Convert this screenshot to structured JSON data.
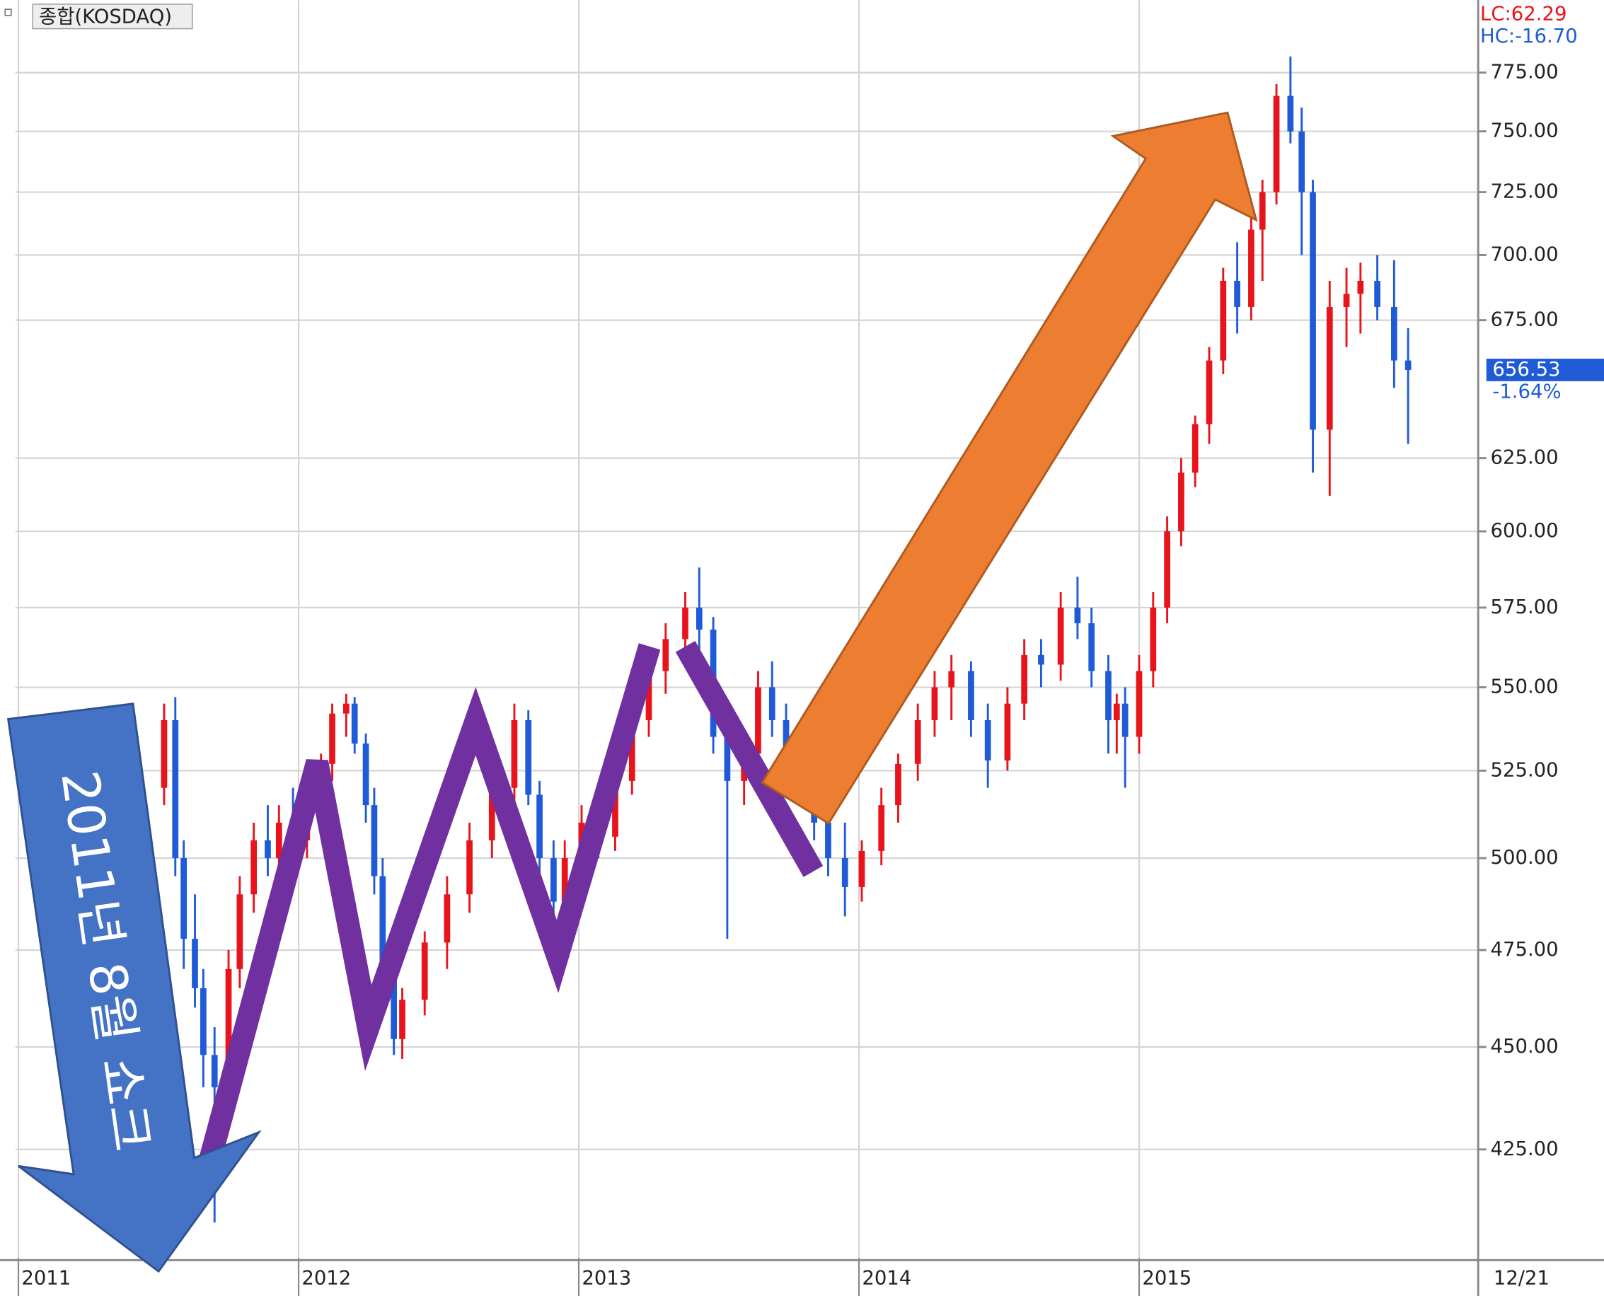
{
  "header": {
    "title": "종합(KOSDAQ)",
    "lc": "LC:62.29",
    "hc": "HC:-16.70"
  },
  "chart_data": {
    "type": "candlestick",
    "x": [
      2011.52,
      2011.56,
      2011.59,
      2011.63,
      2011.66,
      2011.7,
      2011.75,
      2011.79,
      2011.84,
      2011.89,
      2011.93,
      2011.98,
      2012.03,
      2012.08,
      2012.12,
      2012.17,
      2012.2,
      2012.24,
      2012.27,
      2012.3,
      2012.34,
      2012.37,
      2012.45,
      2012.53,
      2012.61,
      2012.69,
      2012.77,
      2012.82,
      2012.86,
      2012.91,
      2012.95,
      2013.01,
      2013.07,
      2013.13,
      2013.19,
      2013.25,
      2013.31,
      2013.38,
      2013.43,
      2013.48,
      2013.53,
      2013.59,
      2013.64,
      2013.69,
      2013.74,
      2013.79,
      2013.84,
      2013.89,
      2013.95,
      2014.01,
      2014.08,
      2014.14,
      2014.21,
      2014.27,
      2014.33,
      2014.4,
      2014.46,
      2014.53,
      2014.59,
      2014.65,
      2014.72,
      2014.78,
      2014.83,
      2014.89,
      2014.92,
      2014.95,
      2015.0,
      2015.05,
      2015.1,
      2015.15,
      2015.2,
      2015.25,
      2015.3,
      2015.35,
      2015.4,
      2015.44,
      2015.49,
      2015.54,
      2015.58,
      2015.62,
      2015.68,
      2015.74,
      2015.79,
      2015.85,
      2015.91,
      2015.96
    ],
    "open": [
      520,
      540,
      500,
      478,
      465,
      448,
      440,
      470,
      490,
      505,
      500,
      510,
      505,
      520,
      527,
      542,
      545,
      533,
      515,
      495,
      470,
      452,
      462,
      477,
      490,
      505,
      520,
      540,
      518,
      500,
      488,
      500,
      510,
      506,
      522,
      540,
      555,
      565,
      575,
      568,
      535,
      522,
      530,
      550,
      540,
      525,
      535,
      510,
      500,
      492,
      502,
      515,
      527,
      540,
      550,
      555,
      540,
      528,
      545,
      560,
      557,
      575,
      570,
      555,
      540,
      545,
      535,
      555,
      575,
      600,
      620,
      637,
      660,
      690,
      680,
      710,
      725,
      765,
      750,
      725,
      635,
      680,
      685,
      690,
      680,
      660
    ],
    "high": [
      545,
      547,
      505,
      490,
      470,
      455,
      475,
      495,
      510,
      515,
      515,
      520,
      525,
      530,
      545,
      548,
      547,
      536,
      520,
      500,
      475,
      465,
      480,
      495,
      510,
      525,
      545,
      543,
      522,
      505,
      505,
      515,
      520,
      525,
      545,
      560,
      570,
      580,
      588,
      572,
      540,
      535,
      555,
      558,
      545,
      538,
      538,
      515,
      510,
      505,
      520,
      530,
      545,
      555,
      560,
      558,
      545,
      550,
      565,
      565,
      580,
      585,
      575,
      560,
      548,
      550,
      560,
      580,
      605,
      625,
      640,
      665,
      695,
      705,
      715,
      730,
      770,
      782,
      760,
      730,
      690,
      695,
      697,
      700,
      698,
      672
    ],
    "low": [
      515,
      495,
      470,
      460,
      440,
      408,
      435,
      465,
      485,
      495,
      490,
      500,
      500,
      512,
      522,
      535,
      530,
      510,
      490,
      465,
      448,
      447,
      458,
      470,
      485,
      500,
      515,
      515,
      495,
      480,
      475,
      495,
      500,
      502,
      518,
      535,
      548,
      560,
      560,
      530,
      478,
      515,
      525,
      535,
      520,
      515,
      505,
      495,
      484,
      488,
      498,
      510,
      522,
      535,
      540,
      535,
      520,
      525,
      540,
      550,
      552,
      565,
      550,
      530,
      530,
      520,
      530,
      550,
      570,
      595,
      615,
      630,
      655,
      670,
      675,
      690,
      720,
      745,
      700,
      620,
      612,
      665,
      670,
      675,
      650,
      630
    ],
    "close": [
      540,
      500,
      478,
      465,
      448,
      440,
      470,
      490,
      505,
      500,
      510,
      505,
      520,
      527,
      542,
      545,
      533,
      515,
      495,
      470,
      452,
      462,
      477,
      490,
      505,
      520,
      540,
      518,
      500,
      488,
      500,
      510,
      506,
      522,
      540,
      555,
      565,
      575,
      568,
      535,
      522,
      530,
      550,
      540,
      525,
      535,
      510,
      500,
      492,
      502,
      515,
      527,
      540,
      550,
      555,
      540,
      528,
      545,
      560,
      557,
      575,
      570,
      555,
      540,
      545,
      535,
      555,
      575,
      600,
      620,
      637,
      660,
      690,
      680,
      710,
      725,
      765,
      750,
      725,
      635,
      680,
      685,
      690,
      680,
      660,
      656.53
    ],
    "up_color": "#e8141c",
    "down_color": "#1f5bd6",
    "xlim": [
      2011,
      2016.21
    ],
    "xticks": [
      2011,
      2012,
      2013,
      2014,
      2015
    ],
    "ylim": [
      400,
      807
    ],
    "log_y": true,
    "grid": true,
    "yticks": [
      {
        "value": 425,
        "label": "425.00"
      },
      {
        "value": 450,
        "label": "450.00"
      },
      {
        "value": 475,
        "label": "475.00"
      },
      {
        "value": 500,
        "label": "500.00"
      },
      {
        "value": 525,
        "label": "525.00"
      },
      {
        "value": 550,
        "label": "550.00"
      },
      {
        "value": 575,
        "label": "575.00"
      },
      {
        "value": 600,
        "label": "600.00"
      },
      {
        "value": 625,
        "label": "625.00"
      },
      {
        "value": 675,
        "label": "675.00"
      },
      {
        "value": 700,
        "label": "700.00"
      },
      {
        "value": 725,
        "label": "725.00"
      },
      {
        "value": 750,
        "label": "750.00"
      },
      {
        "value": 775,
        "label": "775.00"
      }
    ],
    "last_value": 656.53,
    "last_change": "-1.64%",
    "end_label": "12/21",
    "annotation": "2011년 8월 쇼크"
  }
}
